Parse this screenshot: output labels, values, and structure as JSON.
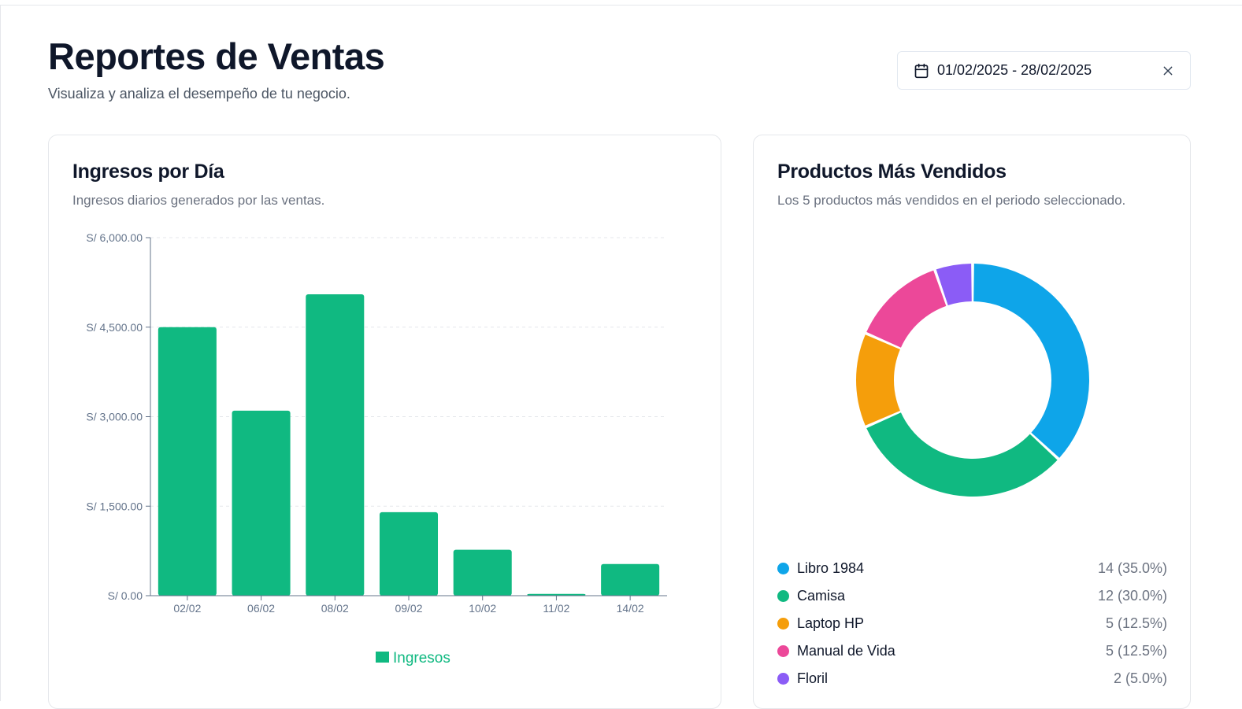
{
  "header": {
    "title": "Reportes de Ventas",
    "subtitle": "Visualiza y analiza el desempeño de tu negocio.",
    "date_range": "01/02/2025 - 28/02/2025"
  },
  "revenue_card": {
    "title": "Ingresos por Día",
    "description": "Ingresos diarios generados por las ventas."
  },
  "products_card": {
    "title": "Productos Más Vendidos",
    "description": "Los 5 productos más vendidos en el periodo seleccionado."
  },
  "colors": {
    "bar": "#10b981",
    "axis": "#64748b",
    "grid": "#e5e7eb"
  },
  "chart_data": [
    {
      "type": "bar",
      "categories": [
        "02/02",
        "06/02",
        "08/02",
        "09/02",
        "10/02",
        "11/02",
        "14/02"
      ],
      "series": [
        {
          "name": "Ingresos",
          "values": [
            4500,
            3100,
            5050,
            1400,
            770,
            30,
            530
          ],
          "color": "#10b981"
        }
      ],
      "yticks": [
        "S/ 0.00",
        "S/ 1,500.00",
        "S/ 3,000.00",
        "S/ 4,500.00",
        "S/ 6,000.00"
      ],
      "ylim": [
        0,
        6000
      ],
      "grid": true,
      "legend": "bottom-center"
    },
    {
      "type": "pie",
      "donut": true,
      "slices": [
        {
          "label": "Libro 1984",
          "value": 14,
          "display": "14 (35.0%)",
          "color": "#0ea5e9"
        },
        {
          "label": "Camisa",
          "value": 12,
          "display": "12 (30.0%)",
          "color": "#10b981"
        },
        {
          "label": "Laptop HP",
          "value": 5,
          "display": "5 (12.5%)",
          "color": "#f59e0b"
        },
        {
          "label": "Manual de Vida",
          "value": 5,
          "display": "5 (12.5%)",
          "color": "#ec4899"
        },
        {
          "label": "Floril",
          "value": 2,
          "display": "2 (5.0%)",
          "color": "#8b5cf6"
        }
      ],
      "legend": "bottom"
    }
  ]
}
